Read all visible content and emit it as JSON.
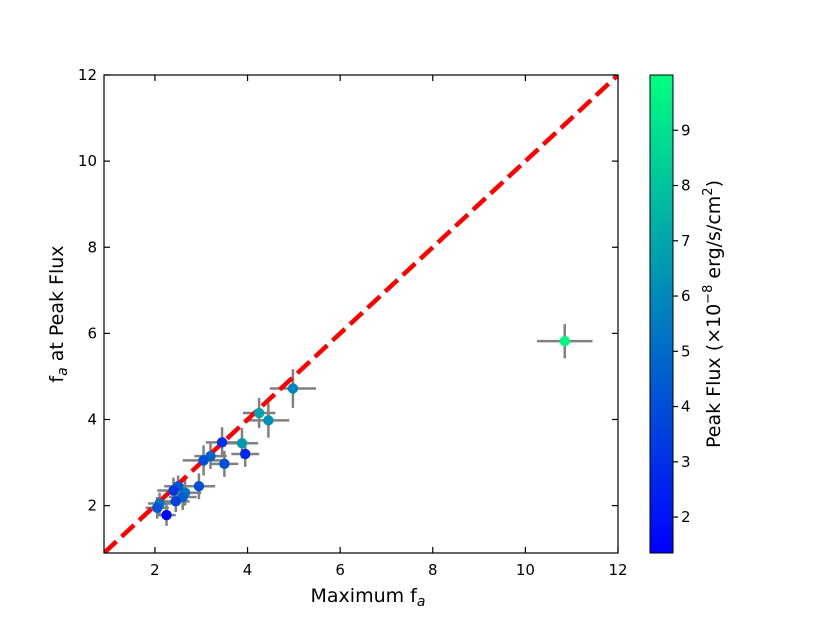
{
  "chart_data": {
    "type": "scatter",
    "xlabel": "Maximum f",
    "xlabel_sub": "a",
    "ylabel": "f",
    "ylabel_sub": "a",
    "ylabel_rest": " at Peak Flux",
    "xlim": [
      0.9,
      12
    ],
    "ylim": [
      0.9,
      12
    ],
    "xticks": [
      2,
      4,
      6,
      8,
      10,
      12
    ],
    "yticks": [
      2,
      4,
      6,
      8,
      10,
      12
    ],
    "reference_line": {
      "style": "red dashed",
      "equation": "y = x",
      "color": "#ff0000"
    },
    "colorbar": {
      "label_prefix": "Peak Flux (×10",
      "label_sup": "−8",
      "label_mid": " erg/s/cm",
      "label_sup2": "2",
      "label_suffix": ")",
      "range": [
        1.35,
        10.0
      ],
      "ticks": [
        2,
        3,
        4,
        5,
        6,
        7,
        8,
        9
      ],
      "colormap": "winter",
      "color_low": "#0000ff",
      "color_high": "#00ff80"
    },
    "points": [
      {
        "x": 10.85,
        "y": 5.82,
        "xerr": 0.6,
        "yerr": 0.4,
        "flux": 9.8
      },
      {
        "x": 4.98,
        "y": 4.72,
        "xerr": 0.5,
        "yerr": 0.45,
        "flux": 5.8
      },
      {
        "x": 4.45,
        "y": 3.98,
        "xerr": 0.45,
        "yerr": 0.4,
        "flux": 6.3
      },
      {
        "x": 4.25,
        "y": 4.15,
        "xerr": 0.35,
        "yerr": 0.35,
        "flux": 6.9
      },
      {
        "x": 3.88,
        "y": 3.45,
        "xerr": 0.35,
        "yerr": 0.35,
        "flux": 6.6
      },
      {
        "x": 3.95,
        "y": 3.2,
        "xerr": 0.3,
        "yerr": 0.3,
        "flux": 2.6
      },
      {
        "x": 3.45,
        "y": 3.47,
        "xerr": 0.35,
        "yerr": 0.35,
        "flux": 3.0
      },
      {
        "x": 3.5,
        "y": 2.97,
        "xerr": 0.3,
        "yerr": 0.3,
        "flux": 4.1
      },
      {
        "x": 3.2,
        "y": 3.15,
        "xerr": 0.35,
        "yerr": 0.3,
        "flux": 4.6
      },
      {
        "x": 3.05,
        "y": 3.05,
        "xerr": 0.45,
        "yerr": 0.35,
        "flux": 4.0
      },
      {
        "x": 2.95,
        "y": 2.45,
        "xerr": 0.35,
        "yerr": 0.3,
        "flux": 4.0
      },
      {
        "x": 2.65,
        "y": 2.3,
        "xerr": 0.35,
        "yerr": 0.3,
        "flux": 5.4
      },
      {
        "x": 2.6,
        "y": 2.2,
        "xerr": 0.3,
        "yerr": 0.3,
        "flux": 4.6
      },
      {
        "x": 2.5,
        "y": 2.45,
        "xerr": 0.3,
        "yerr": 0.25,
        "flux": 4.3
      },
      {
        "x": 2.4,
        "y": 2.35,
        "xerr": 0.35,
        "yerr": 0.3,
        "flux": 3.2
      },
      {
        "x": 2.45,
        "y": 2.1,
        "xerr": 0.3,
        "yerr": 0.25,
        "flux": 3.6
      },
      {
        "x": 2.1,
        "y": 2.05,
        "xerr": 0.25,
        "yerr": 0.25,
        "flux": 5.3
      },
      {
        "x": 2.05,
        "y": 1.95,
        "xerr": 0.25,
        "yerr": 0.25,
        "flux": 4.2
      },
      {
        "x": 2.25,
        "y": 1.78,
        "xerr": 0.2,
        "yerr": 0.25,
        "flux": 1.6
      }
    ]
  }
}
